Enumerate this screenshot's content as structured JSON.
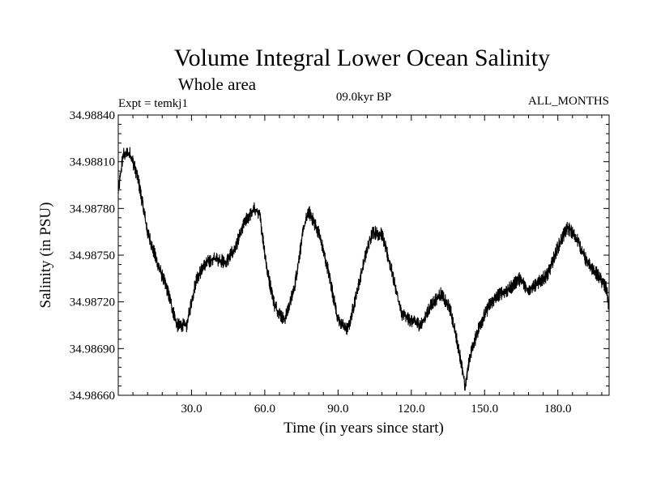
{
  "chart_data": {
    "type": "line",
    "title": "Volume Integral Lower Ocean Salinity",
    "subtitle": "Whole area",
    "experiment": "Expt = temkj1",
    "period": "09.0kyr BP",
    "months": "ALL_MONTHS",
    "xlabel": "Time (in years since start)",
    "ylabel": "Salinity (in PSU)",
    "xlim": [
      0,
      201
    ],
    "ylim": [
      34.9866,
      34.9884
    ],
    "x_ticks": [
      30,
      60,
      90,
      120,
      150,
      180
    ],
    "x_tick_labels": [
      "30.0",
      "60.0",
      "90.0",
      "120.0",
      "150.0",
      "180.0"
    ],
    "y_ticks": [
      34.9866,
      34.9869,
      34.9872,
      34.9875,
      34.9878,
      34.9881,
      34.9884
    ],
    "y_tick_labels": [
      "34.98660",
      "34.98690",
      "34.98720",
      "34.98750",
      "34.98780",
      "34.98810",
      "34.98840"
    ],
    "series": [
      {
        "name": "salinity",
        "x": [
          0,
          2,
          5,
          8,
          12,
          16,
          20,
          24,
          28,
          32,
          36,
          40,
          44,
          48,
          52,
          56,
          58,
          61,
          64,
          68,
          72,
          76,
          78,
          82,
          86,
          90,
          94,
          98,
          101,
          104,
          108,
          112,
          116,
          120,
          124,
          128,
          132,
          136,
          140,
          142,
          144,
          148,
          152,
          156,
          160,
          164,
          168,
          172,
          176,
          180,
          184,
          188,
          192,
          196,
          200,
          201
        ],
        "values": [
          34.9879,
          34.98815,
          34.98815,
          34.988,
          34.98765,
          34.98745,
          34.98728,
          34.98705,
          34.98705,
          34.98735,
          34.98745,
          34.98748,
          34.98745,
          34.98755,
          34.98772,
          34.9878,
          34.98775,
          34.9874,
          34.98718,
          34.98708,
          34.98728,
          34.98768,
          34.98778,
          34.98765,
          34.9874,
          34.98708,
          34.98702,
          34.98728,
          34.98748,
          34.98765,
          34.98763,
          34.9874,
          34.98712,
          34.98708,
          34.98705,
          34.98718,
          34.98725,
          34.98715,
          34.98685,
          34.98665,
          34.98685,
          34.98705,
          34.98718,
          34.98725,
          34.98728,
          34.98735,
          34.98728,
          34.98732,
          34.98738,
          34.98755,
          34.98768,
          34.9876,
          34.98745,
          34.98738,
          34.98728,
          34.98715
        ]
      }
    ]
  }
}
